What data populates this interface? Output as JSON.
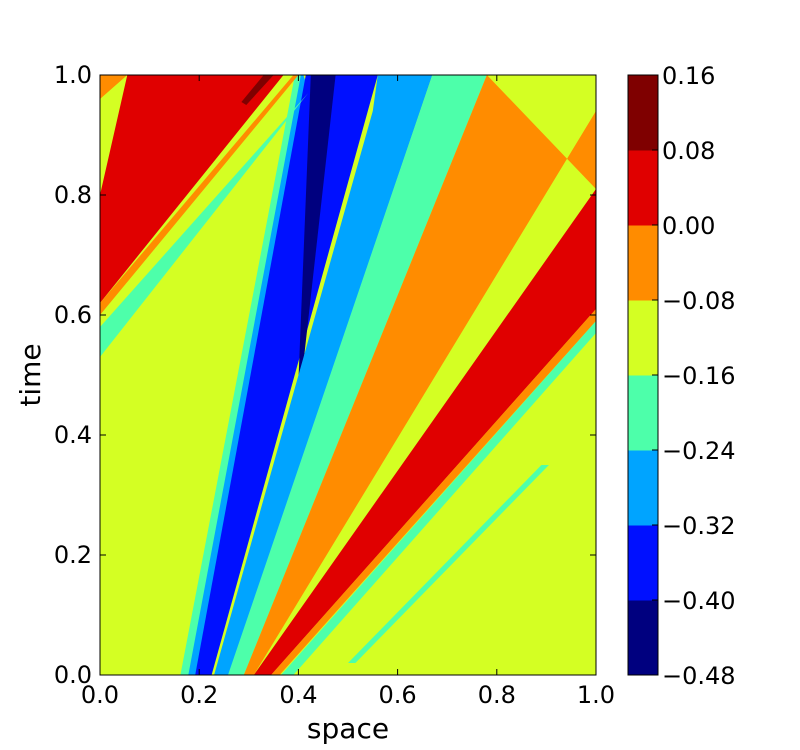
{
  "chart_data": {
    "type": "heatmap",
    "subtype": "filled-contour",
    "title": "",
    "xlabel": "space",
    "ylabel": "time",
    "xlim": [
      0.0,
      1.0
    ],
    "ylim": [
      0.0,
      1.0
    ],
    "x_ticks": [
      "0.0",
      "0.2",
      "0.4",
      "0.6",
      "0.8",
      "1.0"
    ],
    "y_ticks": [
      "0.0",
      "0.2",
      "0.4",
      "0.6",
      "0.8",
      "1.0"
    ],
    "grid": false,
    "colormap": "jet",
    "colorbar": {
      "levels": [
        -0.48,
        -0.4,
        -0.32,
        -0.24,
        -0.16,
        -0.08,
        0.0,
        0.08,
        0.16
      ],
      "tick_labels": [
        "0.16",
        "0.08",
        "0.00",
        "−0.08",
        "−0.16",
        "−0.24",
        "−0.32",
        "−0.40",
        "−0.48"
      ],
      "colors": [
        "#00007f",
        "#0010ff",
        "#00a4ff",
        "#4dffaa",
        "#d4ff23",
        "#ff8c00",
        "#e00000",
        "#7f0000"
      ]
    },
    "contour_bands": [
      {
        "level_range": [
          -0.24,
          -0.16
        ],
        "polygon": [
          [
            0.162,
            0.0
          ],
          [
            0.2,
            0.0
          ],
          [
            0.425,
            0.98
          ],
          [
            0.405,
            1.0
          ],
          [
            0.393,
            1.0
          ]
        ]
      },
      {
        "level_range": [
          -0.32,
          -0.24
        ],
        "polygon": [
          [
            0.178,
            0.0
          ],
          [
            0.215,
            0.0
          ],
          [
            0.43,
            0.95
          ],
          [
            0.41,
            1.0
          ],
          [
            0.405,
            1.0
          ]
        ]
      },
      {
        "level_range": [
          -0.4,
          -0.32
        ],
        "polygon": [
          [
            0.192,
            0.0
          ],
          [
            0.225,
            0.0
          ],
          [
            0.56,
            1.0
          ],
          [
            0.415,
            1.0
          ]
        ]
      },
      {
        "level_range": [
          -0.48,
          -0.4
        ],
        "polygon": [
          [
            0.4,
            0.49
          ],
          [
            0.41,
            0.52
          ],
          [
            0.475,
            1.0
          ],
          [
            0.425,
            1.0
          ]
        ]
      },
      {
        "level_range": [
          -0.32,
          -0.24
        ],
        "polygon": [
          [
            0.23,
            0.0
          ],
          [
            0.26,
            0.0
          ],
          [
            0.67,
            1.0
          ],
          [
            0.56,
            1.0
          ],
          [
            0.55,
            0.94
          ]
        ]
      },
      {
        "level_range": [
          -0.24,
          -0.16
        ],
        "polygon": [
          [
            0.258,
            0.0
          ],
          [
            0.29,
            0.0
          ],
          [
            0.78,
            1.0
          ],
          [
            0.67,
            1.0
          ]
        ]
      },
      {
        "level_range": [
          -0.08,
          0.0
        ],
        "polygon": [
          [
            0.29,
            0.0
          ],
          [
            0.31,
            0.0
          ],
          [
            1.0,
            0.94
          ],
          [
            1.0,
            0.81
          ],
          [
            0.78,
            1.0
          ]
        ]
      },
      {
        "level_range": [
          0.0,
          0.08
        ],
        "polygon": [
          [
            0.31,
            0.0
          ],
          [
            0.345,
            0.0
          ],
          [
            1.0,
            0.61
          ],
          [
            1.0,
            0.81
          ]
        ]
      },
      {
        "level_range": [
          -0.08,
          0.0
        ],
        "polygon": [
          [
            0.345,
            0.0
          ],
          [
            0.362,
            0.0
          ],
          [
            1.0,
            0.59
          ],
          [
            1.0,
            0.61
          ]
        ]
      },
      {
        "level_range": [
          -0.24,
          -0.16
        ],
        "polygon": [
          [
            0.365,
            0.0
          ],
          [
            0.39,
            0.0
          ],
          [
            1.0,
            0.57
          ],
          [
            1.0,
            0.59
          ]
        ]
      },
      {
        "level_range": [
          -0.24,
          -0.16
        ],
        "polygon": [
          [
            0.5,
            0.02
          ],
          [
            0.515,
            0.02
          ],
          [
            0.905,
            0.35
          ],
          [
            0.89,
            0.35
          ]
        ]
      },
      {
        "level_range": [
          -0.08,
          0.0
        ],
        "polygon": [
          [
            0.0,
            0.0
          ],
          [
            0.0,
            1.0
          ],
          [
            0.055,
            1.0
          ],
          [
            0.0,
            0.96
          ]
        ]
      },
      {
        "level_range": [
          0.0,
          0.08
        ],
        "polygon": [
          [
            0.0,
            0.62
          ],
          [
            0.0,
            0.8
          ],
          [
            0.055,
            1.0
          ],
          [
            0.39,
            1.0
          ],
          [
            0.37,
            1.0
          ]
        ]
      },
      {
        "level_range": [
          -0.08,
          0.0
        ],
        "polygon": [
          [
            0.0,
            0.6
          ],
          [
            0.0,
            0.62
          ],
          [
            0.39,
            1.0
          ],
          [
            0.4,
            1.0
          ]
        ]
      },
      {
        "level_range": [
          -0.24,
          -0.16
        ],
        "polygon": [
          [
            0.0,
            0.53
          ],
          [
            0.0,
            0.58
          ],
          [
            0.42,
            0.97
          ],
          [
            0.41,
            0.96
          ]
        ]
      },
      {
        "level_range": [
          0.08,
          0.16
        ],
        "polygon": [
          [
            0.285,
            0.955
          ],
          [
            0.295,
            0.95
          ],
          [
            0.35,
            1.0
          ],
          [
            0.33,
            1.0
          ]
        ]
      }
    ]
  }
}
